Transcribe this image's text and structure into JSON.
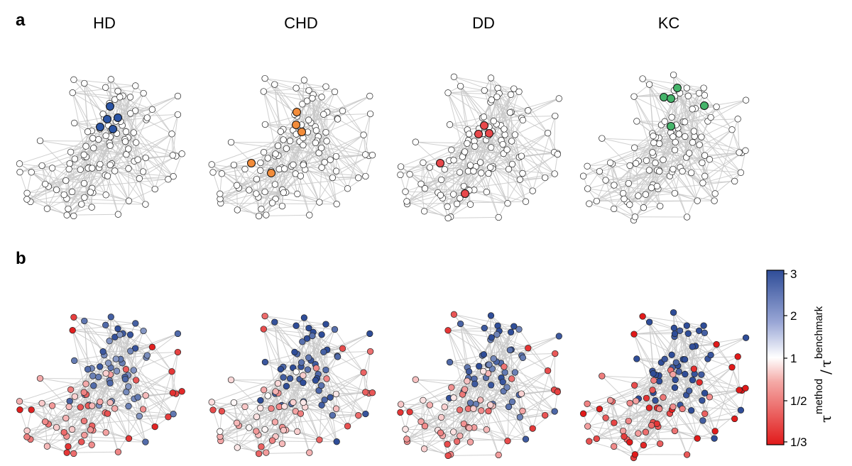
{
  "panels": {
    "a": "a",
    "b": "b"
  },
  "columns": [
    "HD",
    "CHD",
    "DD",
    "KC"
  ],
  "colorbar": {
    "ticks": [
      "3",
      "2",
      "1",
      "1/2",
      "1/3"
    ],
    "label_tau_1": "τ",
    "label_method": "method",
    "label_slash": "/",
    "label_tau_2": "τ",
    "label_benchmark": "benchmark",
    "colors": {
      "high": "#2f4d98",
      "mid": "#ffffff",
      "low": "#e11a1a"
    }
  },
  "colors": {
    "edge": "#c8c8c8",
    "node_fill": "#ffffff",
    "node_stroke": "#222222",
    "HD": "#2b55a5",
    "CHD": "#f28c3a",
    "DD": "#e8484b",
    "KC": "#45b46a"
  }
}
